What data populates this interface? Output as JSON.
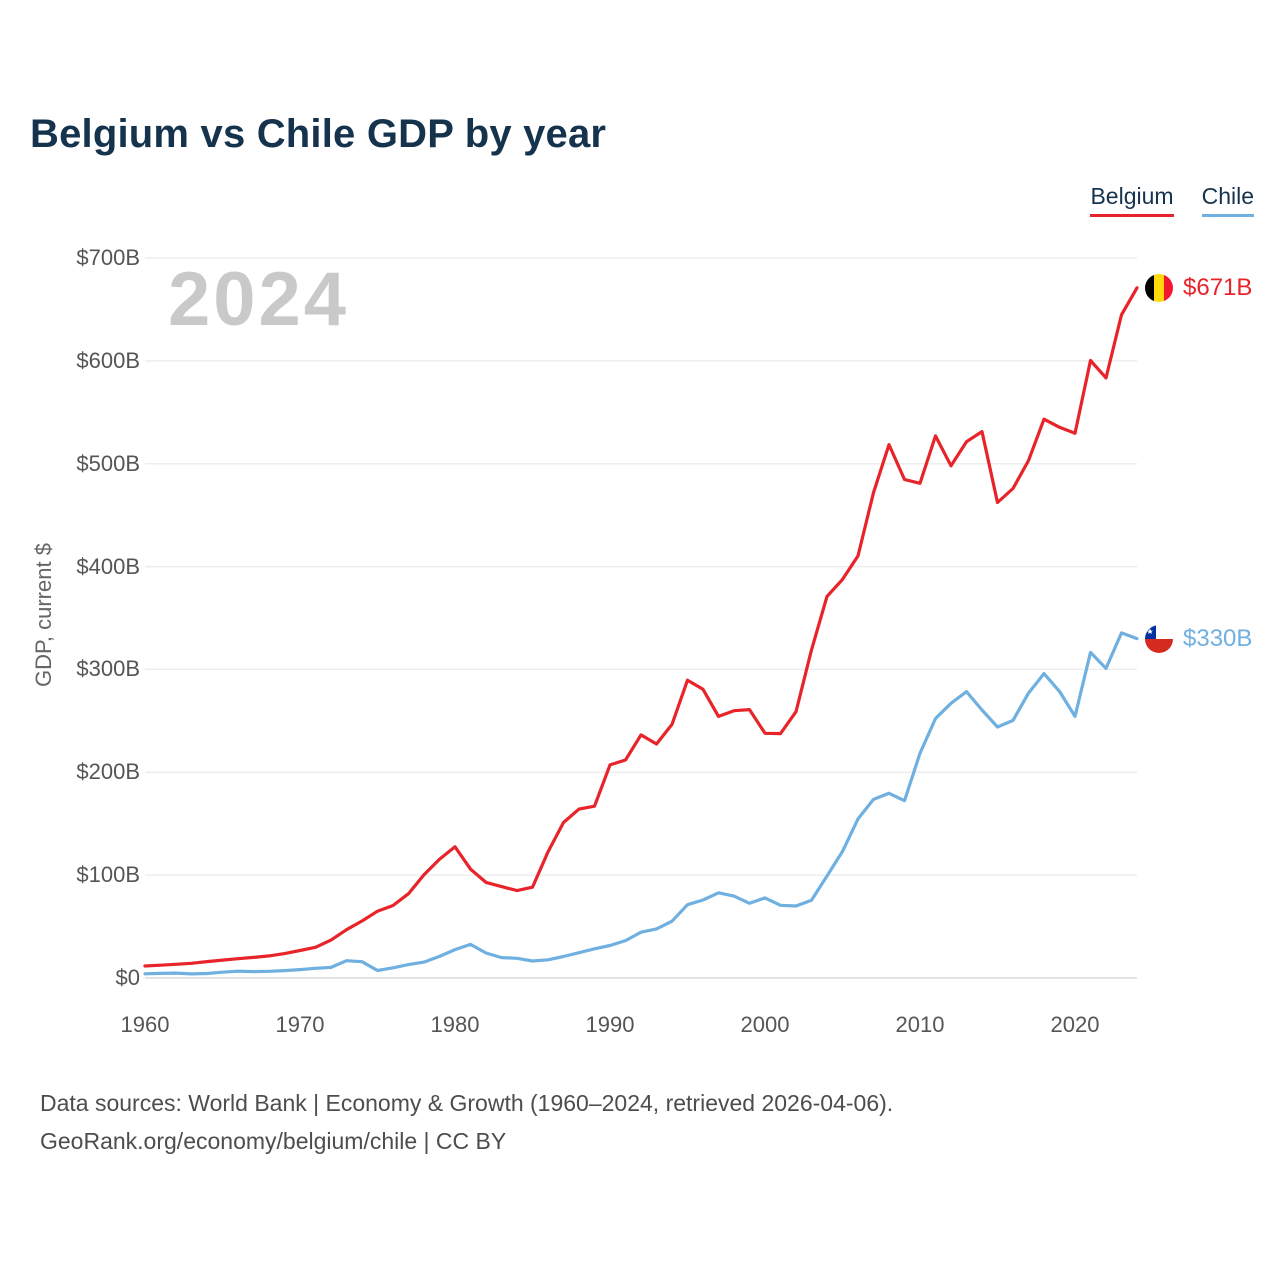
{
  "title": "Belgium vs Chile GDP by year",
  "legend": {
    "belgium": "Belgium",
    "chile": "Chile"
  },
  "watermark": "2024",
  "end_labels": {
    "belgium": "$671B",
    "chile": "$330B"
  },
  "footer": {
    "line1": "Data sources: World Bank | Economy & Growth (1960–2024, retrieved 2026-04-06).",
    "line2": "GeoRank.org/economy/belgium/chile | CC BY"
  },
  "chart_data": {
    "type": "line",
    "title": "Belgium vs Chile GDP by year",
    "xlabel": "",
    "ylabel": "GDP, current $",
    "ylim": [
      0,
      700
    ],
    "grid": "horizontal",
    "legend_position": "top-right",
    "yticks": {
      "values": [
        0,
        100,
        200,
        300,
        400,
        500,
        600,
        700
      ],
      "labels": [
        "$0",
        "$100B",
        "$200B",
        "$300B",
        "$400B",
        "$500B",
        "$600B",
        "$700B"
      ]
    },
    "xticks": {
      "values": [
        1960,
        1970,
        1980,
        1990,
        2000,
        2010,
        2020
      ],
      "labels": [
        "1960",
        "1970",
        "1980",
        "1990",
        "2000",
        "2010",
        "2020"
      ]
    },
    "x": [
      1960,
      1961,
      1962,
      1963,
      1964,
      1965,
      1966,
      1967,
      1968,
      1969,
      1970,
      1971,
      1972,
      1973,
      1974,
      1975,
      1976,
      1977,
      1978,
      1979,
      1980,
      1981,
      1982,
      1983,
      1984,
      1985,
      1986,
      1987,
      1988,
      1989,
      1990,
      1991,
      1992,
      1993,
      1994,
      1995,
      1996,
      1997,
      1998,
      1999,
      2000,
      2001,
      2002,
      2003,
      2004,
      2005,
      2006,
      2007,
      2008,
      2009,
      2010,
      2011,
      2012,
      2013,
      2014,
      2015,
      2016,
      2017,
      2018,
      2019,
      2020,
      2021,
      2022,
      2023,
      2024
    ],
    "series": [
      {
        "name": "Belgium",
        "color": "#e8232a",
        "unit": "billion USD",
        "values": [
          11.7,
          12.4,
          13.3,
          14.3,
          15.9,
          17.4,
          18.8,
          20.0,
          21.5,
          23.7,
          26.7,
          29.8,
          36.8,
          47.0,
          55.4,
          64.9,
          70.5,
          82.0,
          100.4,
          115.5,
          127.6,
          105.9,
          92.9,
          88.9,
          85.0,
          88.3,
          122.6,
          151.2,
          164.2,
          167.0,
          207.2,
          211.9,
          236.3,
          227.5,
          246.6,
          289.5,
          280.7,
          254.3,
          259.9,
          260.9,
          237.9,
          237.6,
          258.9,
          319.0,
          371.0,
          387.5,
          410.4,
          471.9,
          518.6,
          484.7,
          481.0,
          527.0,
          498.0,
          521.4,
          531.2,
          462.3,
          475.9,
          503.0,
          543.3,
          535.4,
          529.6,
          600.3,
          583.4,
          644.8,
          671.0
        ]
      },
      {
        "name": "Chile",
        "color": "#6fb0e0",
        "unit": "billion USD",
        "values": [
          4.1,
          4.5,
          4.8,
          4.0,
          4.4,
          5.6,
          6.6,
          6.2,
          6.5,
          7.2,
          8.2,
          9.4,
          10.3,
          16.8,
          15.8,
          7.3,
          9.9,
          13.0,
          15.5,
          21.0,
          27.6,
          32.7,
          24.3,
          19.8,
          19.2,
          16.5,
          17.7,
          20.9,
          24.6,
          28.4,
          31.6,
          36.4,
          44.5,
          47.7,
          55.2,
          71.3,
          75.8,
          82.8,
          79.6,
          72.6,
          77.9,
          70.7,
          70.0,
          75.6,
          99.2,
          123.1,
          154.7,
          173.6,
          179.6,
          172.4,
          218.5,
          252.3,
          267.1,
          278.4,
          260.6,
          244.0,
          250.4,
          277.0,
          295.9,
          278.6,
          254.3,
          316.6,
          301.0,
          335.5,
          330.0
        ]
      }
    ]
  }
}
